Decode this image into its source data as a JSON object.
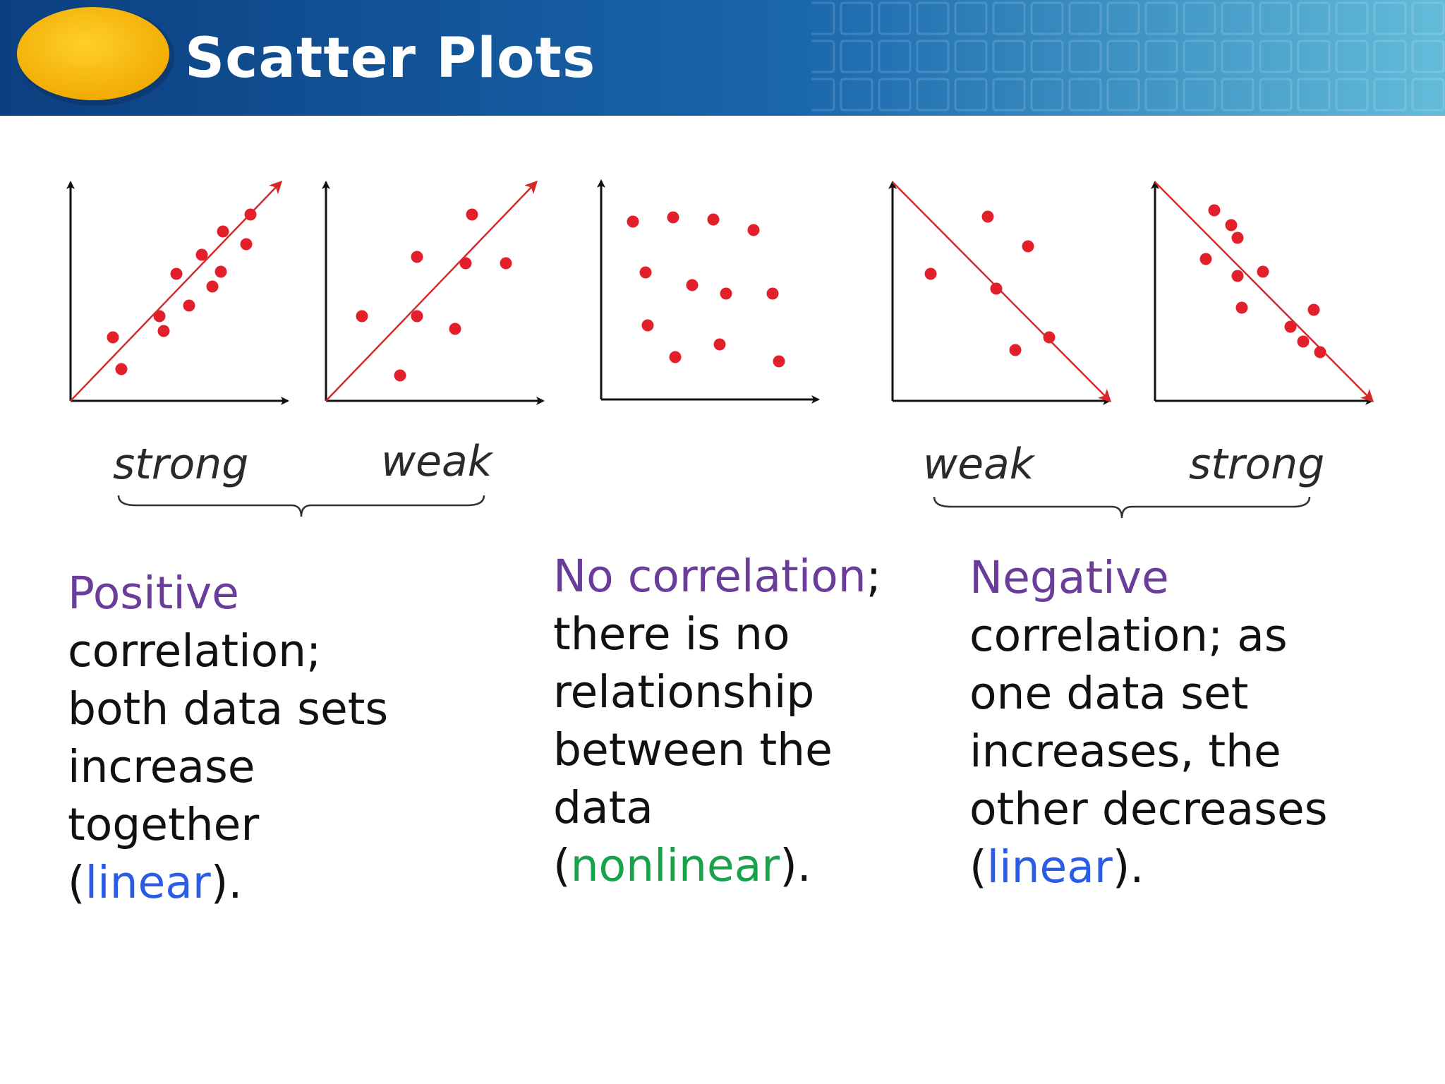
{
  "title": "Scatter Plots",
  "colors": {
    "header_dark": "#0d4a8c",
    "header_light": "#5bb4d6",
    "oval": "#f5b301",
    "points": "#e21f2a",
    "trend_line": "#d62a2a",
    "axes": "#111111",
    "purple": "#6a3d9a",
    "blue": "#2b5ce6",
    "green": "#18a24a"
  },
  "chart_data": [
    {
      "type": "scatter",
      "title": "",
      "label": "strong",
      "xlim": [
        0,
        10
      ],
      "ylim": [
        0,
        10
      ],
      "trend_line": true,
      "points": [
        [
          2,
          3
        ],
        [
          2.4,
          1.5
        ],
        [
          4.2,
          4
        ],
        [
          4.4,
          3.3
        ],
        [
          5,
          6
        ],
        [
          5.6,
          4.5
        ],
        [
          6.2,
          6.9
        ],
        [
          6.7,
          5.4
        ],
        [
          7.1,
          6.1
        ],
        [
          7.2,
          8
        ],
        [
          8.3,
          7.4
        ],
        [
          8.5,
          8.8
        ]
      ]
    },
    {
      "type": "scatter",
      "title": "",
      "label": "weak",
      "xlim": [
        0,
        10
      ],
      "ylim": [
        0,
        10
      ],
      "trend_line": true,
      "points": [
        [
          1.7,
          4
        ],
        [
          3.5,
          1.2
        ],
        [
          4.3,
          4
        ],
        [
          4.3,
          6.8
        ],
        [
          6.1,
          3.4
        ],
        [
          6.6,
          6.5
        ],
        [
          6.9,
          8.8
        ],
        [
          8.5,
          6.5
        ]
      ]
    },
    {
      "type": "scatter",
      "title": "",
      "label": "",
      "xlim": [
        0,
        10
      ],
      "ylim": [
        0,
        10
      ],
      "trend_line": false,
      "points": [
        [
          1.5,
          8.4
        ],
        [
          2.1,
          6
        ],
        [
          2.2,
          3.5
        ],
        [
          3.4,
          8.6
        ],
        [
          3.5,
          2
        ],
        [
          4.3,
          5.4
        ],
        [
          5.3,
          8.5
        ],
        [
          5.6,
          2.6
        ],
        [
          5.9,
          5
        ],
        [
          7.2,
          8
        ],
        [
          8.1,
          5
        ],
        [
          8.4,
          1.8
        ]
      ]
    },
    {
      "type": "scatter",
      "title": "",
      "label": "weak",
      "xlim": [
        0,
        10
      ],
      "ylim": [
        0,
        10
      ],
      "trend_line": true,
      "points": [
        [
          1.8,
          6
        ],
        [
          4.5,
          8.7
        ],
        [
          4.9,
          5.3
        ],
        [
          5.8,
          2.4
        ],
        [
          6.4,
          7.3
        ],
        [
          7.4,
          3
        ]
      ]
    },
    {
      "type": "scatter",
      "title": "",
      "label": "strong",
      "xlim": [
        0,
        10
      ],
      "ylim": [
        0,
        10
      ],
      "trend_line": true,
      "points": [
        [
          2.4,
          6.7
        ],
        [
          2.8,
          9
        ],
        [
          3.6,
          8.3
        ],
        [
          3.9,
          5.9
        ],
        [
          3.9,
          7.7
        ],
        [
          4.1,
          4.4
        ],
        [
          5.1,
          6.1
        ],
        [
          6.4,
          3.5
        ],
        [
          7,
          2.8
        ],
        [
          7.5,
          4.3
        ],
        [
          7.8,
          2.3
        ]
      ]
    }
  ],
  "labels": {
    "positive_strong": "strong",
    "positive_weak": "weak",
    "negative_weak": "weak",
    "negative_strong": "strong"
  },
  "positive": {
    "l1": "Positive",
    "l2": "correlation;",
    "l3": "both data sets",
    "l4": "increase",
    "l5": "together",
    "l6_open": "(",
    "l6_word": "linear",
    "l6_close": ")."
  },
  "none": {
    "l1_word": "No correlation",
    "l1_rest": ";",
    "l2": "there is no",
    "l3": "relationship",
    "l4": "between the",
    "l5": "data",
    "l6_open": "(",
    "l6_word": "nonlinear",
    "l6_close": ")."
  },
  "negative": {
    "l1": "Negative",
    "l2": "correlation; as",
    "l3": "one data set",
    "l4": "increases, the",
    "l5": "other decreases",
    "l6_open": "(",
    "l6_word": "linear",
    "l6_close": ")."
  }
}
